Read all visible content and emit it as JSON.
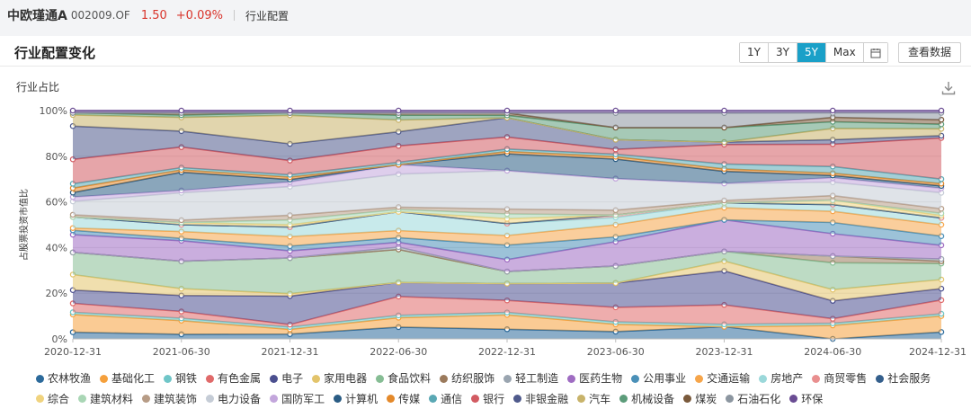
{
  "header": {
    "fund_name": "中欧瑾通A",
    "fund_code": "002009.OF",
    "nav": "1.50",
    "change": "+0.09%",
    "breadcrumb": "行业配置"
  },
  "panel": {
    "title": "行业配置变化",
    "ranges": [
      "1Y",
      "3Y",
      "5Y",
      "Max"
    ],
    "active_range": "5Y",
    "view_data_label": "查看数据",
    "subtitle": "行业占比"
  },
  "icons": {
    "calendar": "calendar-icon",
    "download": "download-icon"
  },
  "chart_data": {
    "type": "area",
    "stacked": true,
    "ylabel": "占股票投资市值比",
    "yticks": [
      "0%",
      "20%",
      "40%",
      "60%",
      "80%",
      "100%"
    ],
    "ylim": [
      0,
      100
    ],
    "x": [
      "2020-12-31",
      "2021-06-30",
      "2021-12-31",
      "2022-06-30",
      "2022-12-31",
      "2023-06-30",
      "2023-12-31",
      "2024-06-30",
      "2024-12-31"
    ],
    "grid": true,
    "legend_position": "bottom",
    "series": [
      {
        "name": "农林牧渔",
        "color": "#2c6a9b",
        "values": [
          3,
          2,
          2,
          5,
          4,
          3,
          5,
          0,
          3
        ]
      },
      {
        "name": "基础化工",
        "color": "#f5a03c",
        "values": [
          8,
          6,
          2,
          4,
          6,
          3,
          0,
          6,
          7
        ]
      },
      {
        "name": "钢铁",
        "color": "#6fc6c8",
        "values": [
          1,
          1,
          1,
          1,
          1,
          1,
          1,
          1,
          1
        ]
      },
      {
        "name": "有色金属",
        "color": "#e06a6a",
        "values": [
          4,
          3,
          1,
          8,
          5,
          6,
          8,
          2,
          6
        ]
      },
      {
        "name": "电子",
        "color": "#4b4f8f",
        "values": [
          6,
          7,
          12,
          6,
          7,
          10,
          14,
          8,
          5
        ]
      },
      {
        "name": "家用电器",
        "color": "#e3c46b",
        "values": [
          7,
          3,
          1,
          0,
          0,
          0,
          4,
          5,
          4
        ]
      },
      {
        "name": "食品饮料",
        "color": "#86bd94",
        "values": [
          10,
          12,
          15,
          14,
          5,
          7,
          4,
          12,
          7
        ]
      },
      {
        "name": "纺织服饰",
        "color": "#9b7a5c",
        "values": [
          0,
          0,
          0,
          0,
          0,
          0,
          0,
          3,
          1
        ]
      },
      {
        "name": "轻工制造",
        "color": "#9aa5b0",
        "values": [
          0,
          0,
          0,
          1,
          0,
          0,
          0,
          0,
          1
        ]
      },
      {
        "name": "医药生物",
        "color": "#9f6cc2",
        "values": [
          8,
          9,
          3,
          2,
          5,
          10,
          13,
          10,
          6
        ]
      },
      {
        "name": "公用事业",
        "color": "#4a90b8",
        "values": [
          2,
          1,
          2,
          2,
          6,
          2,
          0,
          5,
          4
        ]
      },
      {
        "name": "交通运输",
        "color": "#f6a54a",
        "values": [
          1,
          3,
          4,
          3,
          4,
          5,
          5,
          5,
          5
        ]
      },
      {
        "name": "房地产",
        "color": "#9bd8da",
        "values": [
          5,
          3,
          4,
          8,
          5,
          3,
          2,
          3,
          3
        ]
      },
      {
        "name": "商贸零售",
        "color": "#e98f8f",
        "values": [
          0,
          0,
          0,
          0,
          0,
          1,
          0,
          0,
          0
        ]
      },
      {
        "name": "社会服务",
        "color": "#345f8c",
        "values": [
          0,
          0,
          0,
          0,
          0,
          0,
          0,
          0,
          0
        ]
      },
      {
        "name": "综合",
        "color": "#f0d37e",
        "values": [
          0,
          1,
          1,
          0,
          2,
          0,
          0,
          2,
          1
        ]
      },
      {
        "name": "建筑材料",
        "color": "#a9d6b5",
        "values": [
          0,
          0,
          2,
          1,
          2,
          0,
          0,
          0,
          1
        ]
      },
      {
        "name": "建筑装饰",
        "color": "#b79c86",
        "values": [
          1,
          1,
          2,
          1,
          2,
          2,
          1,
          2,
          2
        ]
      },
      {
        "name": "电力设备",
        "color": "#c5ccd6",
        "values": [
          6,
          12,
          12,
          14,
          16,
          13,
          7,
          6,
          7
        ]
      },
      {
        "name": "国防军工",
        "color": "#c3a6dc",
        "values": [
          2,
          1,
          2,
          4,
          0,
          0,
          0,
          2,
          2
        ]
      },
      {
        "name": "计算机",
        "color": "#2a5c84",
        "values": [
          2,
          8,
          1,
          0,
          7,
          8,
          5,
          1,
          1
        ]
      },
      {
        "name": "传媒",
        "color": "#e4892a",
        "values": [
          2,
          1,
          1,
          0,
          1,
          1,
          1,
          1,
          1
        ]
      },
      {
        "name": "通信",
        "color": "#5aa8b4",
        "values": [
          2,
          1,
          1,
          1,
          1,
          1,
          2,
          3,
          2
        ]
      },
      {
        "name": "银行",
        "color": "#d25b62",
        "values": [
          11,
          9,
          6,
          7,
          5,
          2,
          8,
          10,
          18
        ]
      },
      {
        "name": "非银金融",
        "color": "#4f5a8c",
        "values": [
          15,
          7,
          7,
          6,
          8,
          4,
          1,
          2,
          1
        ]
      },
      {
        "name": "汽车",
        "color": "#c8b36a",
        "values": [
          5,
          6,
          12,
          5,
          0,
          0,
          0,
          5,
          3
        ]
      },
      {
        "name": "机械设备",
        "color": "#5c9c7a",
        "values": [
          1,
          1,
          1,
          2,
          1,
          5,
          6,
          3,
          2
        ]
      },
      {
        "name": "煤炭",
        "color": "#7a5a3c",
        "values": [
          0,
          1,
          0,
          1,
          1,
          0,
          0,
          2,
          2
        ]
      },
      {
        "name": "石油石化",
        "color": "#8c96a0",
        "values": [
          0,
          0,
          0,
          0,
          0,
          6,
          6,
          2,
          3
        ]
      },
      {
        "name": "环保",
        "color": "#6a4c93",
        "values": [
          1,
          1,
          1,
          1,
          1,
          1,
          1,
          1,
          1
        ]
      }
    ]
  }
}
